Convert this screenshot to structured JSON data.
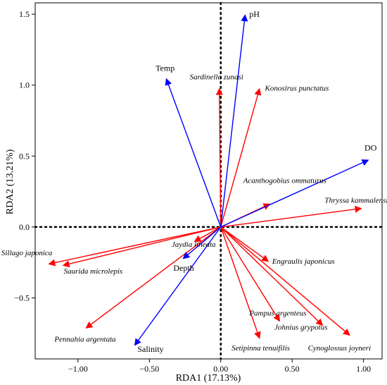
{
  "chart_data": {
    "type": "biplot",
    "xlabel": "RDA1 (17.13%)",
    "ylabel": "RDA2 (13.21%)",
    "xlim": [
      -1.3,
      1.13
    ],
    "ylim": [
      -0.93,
      1.58
    ],
    "x_ticks": [
      -1.0,
      -0.5,
      0.0,
      0.5,
      1.0
    ],
    "x_tick_labels": [
      "−1.00",
      "−0.50",
      "0.00",
      "0.50",
      "1.00"
    ],
    "y_ticks": [
      -0.5,
      0.0,
      0.5,
      1.0,
      1.5
    ],
    "y_tick_labels": [
      "−0.5",
      "0.0",
      "0.5",
      "1.0",
      "1.5"
    ],
    "zero_lines": "dotted",
    "colors": {
      "environment": "#0000ff",
      "species": "#ff0000"
    },
    "environmental_vectors": [
      {
        "label": "pH",
        "x": 0.17,
        "y": 1.49
      },
      {
        "label": "Temp",
        "x": -0.38,
        "y": 1.04
      },
      {
        "label": "DO",
        "x": 1.03,
        "y": 0.47
      },
      {
        "label": "Depth",
        "x": -0.26,
        "y": -0.22
      },
      {
        "label": "Salinity",
        "x": -0.6,
        "y": -0.83
      }
    ],
    "species_vectors": [
      {
        "label": "Sardinella zunasi",
        "x": -0.01,
        "y": 0.97
      },
      {
        "label": "Konosirus punctatus",
        "x": 0.27,
        "y": 0.97
      },
      {
        "label": "Acanthogobius ommaturus",
        "x": 0.34,
        "y": 0.16
      },
      {
        "label": "Thryssa kammalensis",
        "x": 0.98,
        "y": 0.13
      },
      {
        "label": "Jaydia lineata",
        "x": -0.18,
        "y": -0.1
      },
      {
        "label": "Sillago japonica",
        "x": -1.2,
        "y": -0.26
      },
      {
        "label": "Saurida microlepis",
        "x": -1.1,
        "y": -0.27
      },
      {
        "label": "Engraulis japonicus",
        "x": 0.33,
        "y": -0.24
      },
      {
        "label": "Pennahia argentata",
        "x": -0.94,
        "y": -0.71
      },
      {
        "label": "Pampus argenteus",
        "x": 0.41,
        "y": -0.66
      },
      {
        "label": "Setipinna tenuifilis",
        "x": 0.27,
        "y": -0.78
      },
      {
        "label": "Johnius grypotus",
        "x": 0.71,
        "y": -0.69
      },
      {
        "label": "Cynoglossus joyneri",
        "x": 0.9,
        "y": -0.76
      }
    ]
  }
}
